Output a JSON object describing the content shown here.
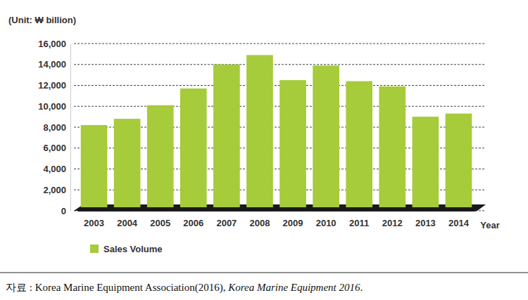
{
  "chart_data": {
    "type": "bar",
    "y_label": "(Unit: ₩ billion)",
    "x_label": "Year",
    "categories": [
      "2003",
      "2004",
      "2005",
      "2006",
      "2007",
      "2008",
      "2009",
      "2010",
      "2011",
      "2012",
      "2013",
      "2014"
    ],
    "series": [
      {
        "name": "Sales Volume",
        "color": "#a6cb3b",
        "values": [
          8200,
          8800,
          10100,
          11700,
          14000,
          14900,
          12500,
          13900,
          12400,
          11900,
          9000,
          9300
        ]
      }
    ],
    "ylim": [
      0,
      16000
    ],
    "yticks": [
      0,
      {
        "value": 2000,
        "label": "2,000"
      },
      {
        "value": 4000,
        "label": "4,000"
      },
      {
        "value": 6000,
        "label": "6,000"
      },
      {
        "value": 8000,
        "label": "8,000"
      },
      {
        "value": 10000,
        "label": "10,000"
      },
      {
        "value": 12000,
        "label": "12,000"
      },
      {
        "value": 14000,
        "label": "14,000"
      },
      {
        "value": 16000,
        "label": "16,000"
      }
    ],
    "grid": true,
    "legend": "bottom-left",
    "source": [
      "자료 : Korea Marine Equipment Association(2016), ",
      "Korea Marine Equipment 2016",
      "."
    ]
  }
}
